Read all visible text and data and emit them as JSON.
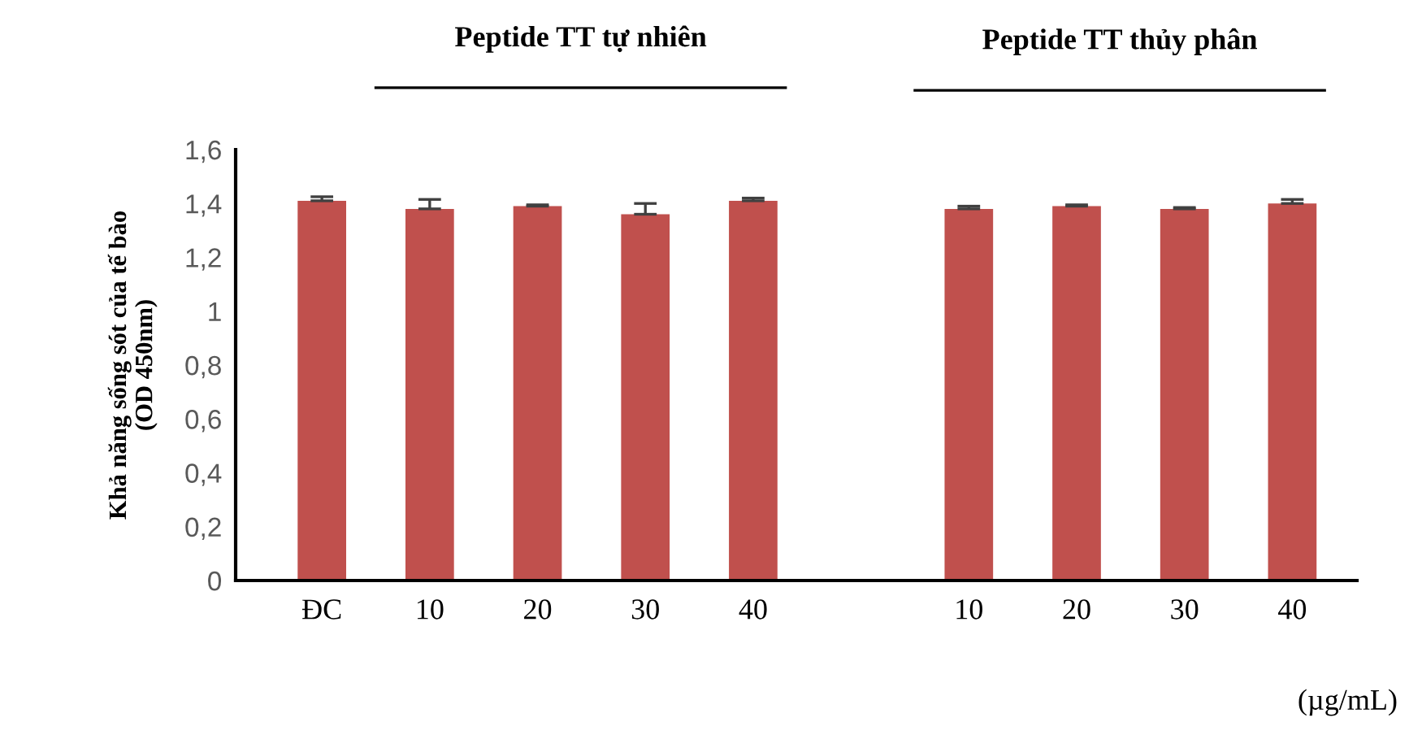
{
  "chart_data": {
    "type": "bar",
    "ylabel": "Khả năng sống sót của tế bào\n(OD 450nm)",
    "categories": [
      "ĐC",
      "10",
      "20",
      "30",
      "40",
      null,
      "10",
      "20",
      "30",
      "40"
    ],
    "values": [
      1.41,
      1.38,
      1.39,
      1.36,
      1.41,
      null,
      1.38,
      1.39,
      1.38,
      1.4
    ],
    "errors": [
      0.015,
      0.035,
      0.005,
      0.04,
      0.01,
      null,
      0.01,
      0.005,
      0.005,
      0.015
    ],
    "color": "#c0504d",
    "ylim": [
      0,
      1.6
    ],
    "yticks": [
      {
        "value": 0,
        "label": "0"
      },
      {
        "value": 0.2,
        "label": "0,2"
      },
      {
        "value": 0.4,
        "label": "0,4"
      },
      {
        "value": 0.6,
        "label": "0,6"
      },
      {
        "value": 0.8,
        "label": "0,8"
      },
      {
        "value": 1,
        "label": "1"
      },
      {
        "value": 1.2,
        "label": "1,2"
      },
      {
        "value": 1.4,
        "label": "1,4"
      },
      {
        "value": 1.6,
        "label": "1,6"
      }
    ],
    "grid": false,
    "legend": false,
    "annotations": [
      "Peptide TT tự nhiên",
      "Peptide TT thủy phân",
      "(µg/mL)"
    ]
  }
}
